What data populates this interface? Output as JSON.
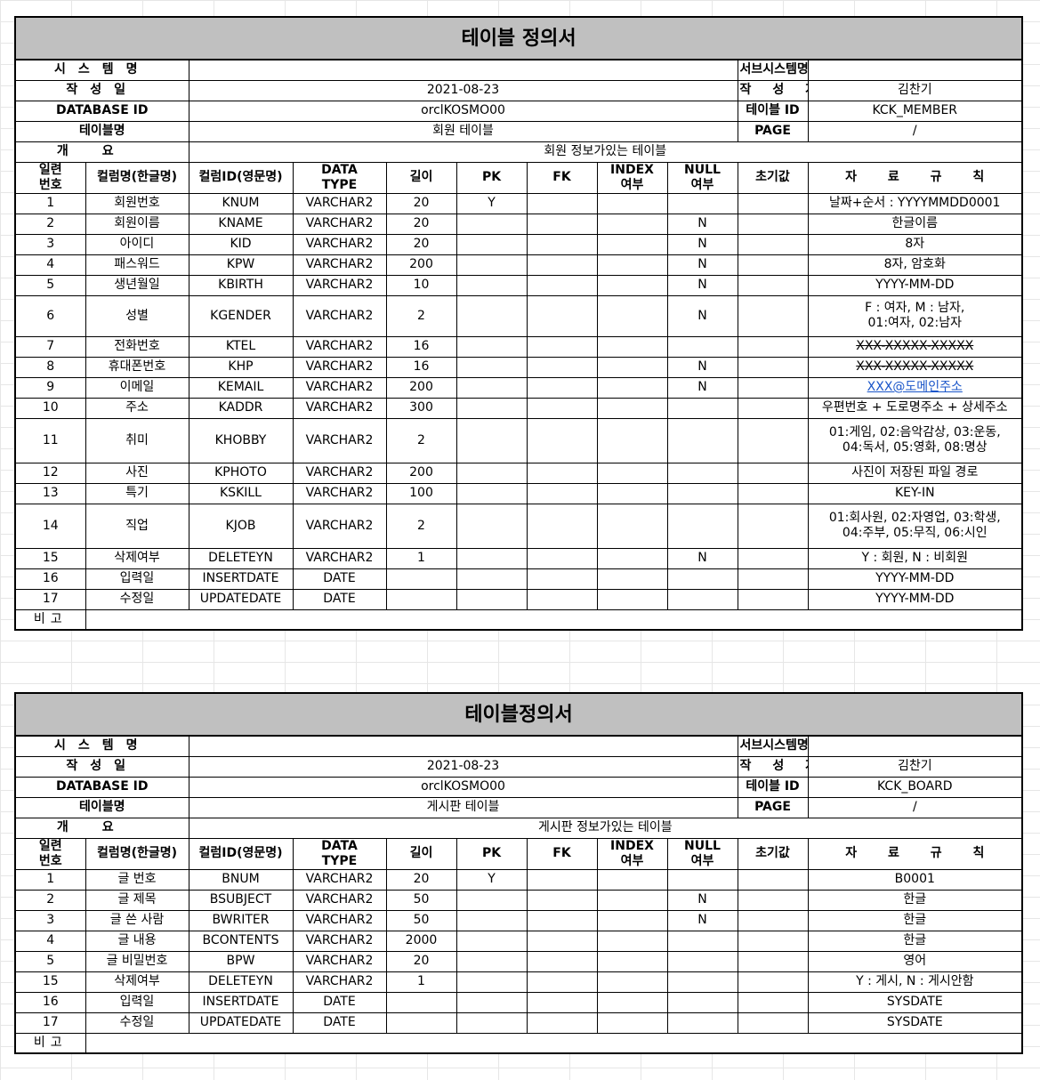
{
  "sheet1": {
    "title": "테이블 정의서",
    "system_label": "시스템명",
    "system_value": "",
    "subsystem_label": "서브시스템명",
    "subsystem_value": "",
    "author_date_label": "작성일",
    "date_value": "2021-08-23",
    "author_label": "작성자",
    "author_value": "김찬기",
    "db_label": "DATABASE ID",
    "db_value": "orclKOSMO00",
    "table_id_label": "테이블 ID",
    "table_id_value": "KCK_MEMBER",
    "table_name_label": "테이블명",
    "table_name_value": "회원 테이블",
    "page_label": "PAGE",
    "page_value": "/",
    "overview_label": "개요",
    "overview_value": "회원 정보가있는 테이블",
    "headers": {
      "no": "일련\n번호",
      "kname": "컬럼명(한글명)",
      "cid": "컬럼ID(영문명)",
      "type": "DATA\nTYPE",
      "len": "길이",
      "pk": "PK",
      "fk": "FK",
      "index": "INDEX\n여부",
      "null": "NULL\n여부",
      "default": "초기값",
      "rule": "자 료 규 칙"
    },
    "rows": [
      {
        "no": "1",
        "kname": "회원번호",
        "cid": "KNUM",
        "type": "VARCHAR2",
        "len": "20",
        "pk": "Y",
        "null": "",
        "rule": "날짜+순서 : YYYYMMDD0001"
      },
      {
        "no": "2",
        "kname": "회원이름",
        "cid": "KNAME",
        "type": "VARCHAR2",
        "len": "20",
        "pk": "",
        "null": "N",
        "rule": "한글이름"
      },
      {
        "no": "3",
        "kname": "아이디",
        "cid": "KID",
        "type": "VARCHAR2",
        "len": "20",
        "pk": "",
        "null": "N",
        "rule": "8자"
      },
      {
        "no": "4",
        "kname": "패스워드",
        "cid": "KPW",
        "type": "VARCHAR2",
        "len": "200",
        "pk": "",
        "null": "N",
        "rule": "8자, 암호화"
      },
      {
        "no": "5",
        "kname": "생년월일",
        "cid": "KBIRTH",
        "type": "VARCHAR2",
        "len": "10",
        "pk": "",
        "null": "N",
        "rule": "YYYY-MM-DD"
      },
      {
        "no": "6",
        "kname": "성별",
        "cid": "KGENDER",
        "type": "VARCHAR2",
        "len": "2",
        "pk": "",
        "null": "N",
        "rule": "F : 여자, M : 남자,\n01:여자, 02:남자"
      },
      {
        "no": "7",
        "kname": "전화번호",
        "cid": "KTEL",
        "type": "VARCHAR2",
        "len": "16",
        "pk": "",
        "null": "",
        "rule": "XXX-XXXXX-XXXXX"
      },
      {
        "no": "8",
        "kname": "휴대폰번호",
        "cid": "KHP",
        "type": "VARCHAR2",
        "len": "16",
        "pk": "",
        "null": "N",
        "rule": "XXX-XXXXX-XXXXX"
      },
      {
        "no": "9",
        "kname": "이메일",
        "cid": "KEMAIL",
        "type": "VARCHAR2",
        "len": "200",
        "pk": "",
        "null": "N",
        "rule": "XXX@도메인주소"
      },
      {
        "no": "10",
        "kname": "주소",
        "cid": "KADDR",
        "type": "VARCHAR2",
        "len": "300",
        "pk": "",
        "null": "",
        "rule": "우편번호 + 도로명주소 + 상세주소"
      },
      {
        "no": "11",
        "kname": "취미",
        "cid": "KHOBBY",
        "type": "VARCHAR2",
        "len": "2",
        "pk": "",
        "null": "",
        "rule": "01:게임, 02:음악감상, 03:운동,\n04:독서, 05:영화, 08:명상"
      },
      {
        "no": "12",
        "kname": "사진",
        "cid": "KPHOTO",
        "type": "VARCHAR2",
        "len": "200",
        "pk": "",
        "null": "",
        "rule": "사진이 저장된 파일 경로"
      },
      {
        "no": "13",
        "kname": "특기",
        "cid": "KSKILL",
        "type": "VARCHAR2",
        "len": "100",
        "pk": "",
        "null": "",
        "rule": "KEY-IN"
      },
      {
        "no": "14",
        "kname": "직업",
        "cid": "KJOB",
        "type": "VARCHAR2",
        "len": "2",
        "pk": "",
        "null": "",
        "rule": "01:회사원, 02:자영업, 03:학생,\n04:주부, 05:무직, 06:시인"
      },
      {
        "no": "15",
        "kname": "삭제여부",
        "cid": "DELETEYN",
        "type": "VARCHAR2",
        "len": "1",
        "pk": "",
        "null": "N",
        "rule": "Y : 회원, N : 비회원"
      },
      {
        "no": "16",
        "kname": "입력일",
        "cid": "INSERTDATE",
        "type": "DATE",
        "len": "",
        "pk": "",
        "null": "",
        "rule": "YYYY-MM-DD"
      },
      {
        "no": "17",
        "kname": "수정일",
        "cid": "UPDATEDATE",
        "type": "DATE",
        "len": "",
        "pk": "",
        "null": "",
        "rule": "YYYY-MM-DD"
      }
    ],
    "remark_label": "비고"
  },
  "sheet2": {
    "title": "테이블정의서",
    "system_label": "시스템명",
    "system_value": "",
    "subsystem_label": "서브시스템명",
    "subsystem_value": "",
    "author_date_label": "작성일",
    "date_value": "2021-08-23",
    "author_label": "작성자",
    "author_value": "김찬기",
    "db_label": "DATABASE ID",
    "db_value": "orclKOSMO00",
    "table_id_label": "테이블 ID",
    "table_id_value": "KCK_BOARD",
    "table_name_label": "테이블명",
    "table_name_value": "게시판 테이블",
    "page_label": "PAGE",
    "page_value": "/",
    "overview_label": "개요",
    "overview_value": "게시판 정보가있는 테이블",
    "headers": {
      "no": "일련\n번호",
      "kname": "컬럼명(한글명)",
      "cid": "컬럼ID(영문명)",
      "type": "DATA\nTYPE",
      "len": "길이",
      "pk": "PK",
      "fk": "FK",
      "index": "INDEX\n여부",
      "null": "NULL\n여부",
      "default": "초기값",
      "rule": "자 료 규 칙"
    },
    "rows": [
      {
        "no": "1",
        "kname": "글 번호",
        "cid": "BNUM",
        "type": "VARCHAR2",
        "len": "20",
        "pk": "Y",
        "null": "",
        "rule": "B0001"
      },
      {
        "no": "2",
        "kname": "글 제목",
        "cid": "BSUBJECT",
        "type": "VARCHAR2",
        "len": "50",
        "pk": "",
        "null": "N",
        "rule": "한글"
      },
      {
        "no": "3",
        "kname": "글 쓴 사람",
        "cid": "BWRITER",
        "type": "VARCHAR2",
        "len": "50",
        "pk": "",
        "null": "N",
        "rule": "한글"
      },
      {
        "no": "4",
        "kname": "글 내용",
        "cid": "BCONTENTS",
        "type": "VARCHAR2",
        "len": "2000",
        "pk": "",
        "null": "",
        "rule": "한글"
      },
      {
        "no": "5",
        "kname": "글 비밀번호",
        "cid": "BPW",
        "type": "VARCHAR2",
        "len": "20",
        "pk": "",
        "null": "",
        "rule": "영어"
      },
      {
        "no": "15",
        "kname": "삭제여부",
        "cid": "DELETEYN",
        "type": "VARCHAR2",
        "len": "1",
        "pk": "",
        "null": "",
        "rule": "Y : 게시, N : 게시안함"
      },
      {
        "no": "16",
        "kname": "입력일",
        "cid": "INSERTDATE",
        "type": "DATE",
        "len": "",
        "pk": "",
        "null": "",
        "rule": "SYSDATE"
      },
      {
        "no": "17",
        "kname": "수정일",
        "cid": "UPDATEDATE",
        "type": "DATE",
        "len": "",
        "pk": "",
        "null": "",
        "rule": "SYSDATE"
      }
    ],
    "remark_label": "비고"
  }
}
